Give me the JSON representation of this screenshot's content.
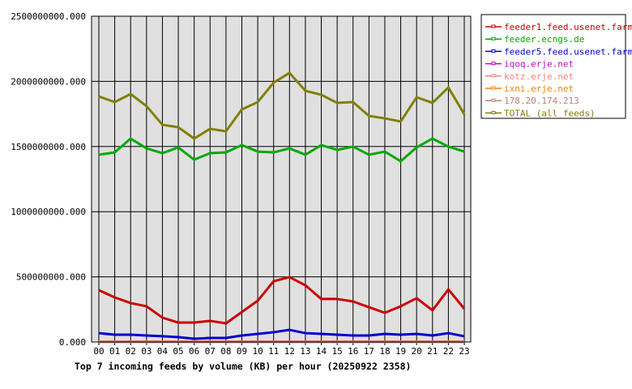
{
  "chart_data": {
    "type": "line",
    "title": "Top 7 incoming feeds by volume (KB) per hour (20250922 2358)",
    "xlabel": "",
    "ylabel": "",
    "ylim": [
      0,
      2500000000
    ],
    "yticks": [
      "0.000",
      "500000000.000",
      "1000000000.000",
      "1500000000.000",
      "2000000000.000",
      "2500000000.000"
    ],
    "ytick_values": [
      0,
      500000000,
      1000000000,
      1500000000,
      2000000000,
      2500000000
    ],
    "x": [
      "00",
      "01",
      "02",
      "03",
      "04",
      "05",
      "06",
      "07",
      "08",
      "09",
      "10",
      "11",
      "12",
      "13",
      "14",
      "15",
      "16",
      "17",
      "18",
      "19",
      "20",
      "21",
      "22",
      "23"
    ],
    "grid": true,
    "legend_position": "right",
    "plot_background": "#e0e0e0",
    "series": [
      {
        "name": "feeder1.feed.usenet.farm",
        "color": "#cc0000",
        "values": [
          398000000,
          342000000,
          299000000,
          274000000,
          187000000,
          149000000,
          149000000,
          162000000,
          143000000,
          230000000,
          317000000,
          466000000,
          498000000,
          435000000,
          330000000,
          330000000,
          311000000,
          267000000,
          224000000,
          274000000,
          336000000,
          243000000,
          404000000,
          255000000
        ]
      },
      {
        "name": "feeder.ecngs.de",
        "color": "#00aa00",
        "values": [
          1437000000,
          1455000000,
          1561000000,
          1486000000,
          1449000000,
          1493000000,
          1399000000,
          1449000000,
          1455000000,
          1511000000,
          1461000000,
          1455000000,
          1486000000,
          1437000000,
          1511000000,
          1474000000,
          1499000000,
          1437000000,
          1461000000,
          1387000000,
          1493000000,
          1561000000,
          1499000000,
          1461000000
        ]
      },
      {
        "name": "feeder5.feed.usenet.farm",
        "color": "#0000cc",
        "values": [
          68000000,
          56000000,
          56000000,
          50000000,
          44000000,
          37000000,
          25000000,
          31000000,
          31000000,
          50000000,
          62000000,
          75000000,
          93000000,
          68000000,
          62000000,
          56000000,
          50000000,
          50000000,
          62000000,
          56000000,
          62000000,
          50000000,
          68000000,
          44000000
        ]
      },
      {
        "name": "iqoq.erje.net",
        "color": "#cc00cc",
        "values": [
          3000000,
          3000000,
          3000000,
          3000000,
          3000000,
          3000000,
          3000000,
          3000000,
          3000000,
          3000000,
          3000000,
          3000000,
          3000000,
          3000000,
          3000000,
          3000000,
          3000000,
          3000000,
          3000000,
          3000000,
          3000000,
          3000000,
          3000000,
          3000000
        ]
      },
      {
        "name": "kotz.erje.net",
        "color": "#ff8080",
        "values": [
          2000000,
          2000000,
          2000000,
          2000000,
          2000000,
          2000000,
          2000000,
          2000000,
          2000000,
          2000000,
          2000000,
          2000000,
          2000000,
          2000000,
          2000000,
          2000000,
          2000000,
          2000000,
          2000000,
          2000000,
          2000000,
          2000000,
          2000000,
          2000000
        ]
      },
      {
        "name": "ixni.erje.net",
        "color": "#ff8000",
        "values": [
          2000000,
          2000000,
          2000000,
          2000000,
          2000000,
          2000000,
          2000000,
          2000000,
          2000000,
          2000000,
          2000000,
          2000000,
          2000000,
          2000000,
          2000000,
          2000000,
          2000000,
          2000000,
          2000000,
          2000000,
          2000000,
          2000000,
          2000000,
          2000000
        ]
      },
      {
        "name": "178.20.174.213",
        "color": "#c08080",
        "values": [
          1000000,
          1000000,
          1000000,
          1000000,
          1000000,
          1000000,
          1000000,
          1000000,
          1000000,
          1000000,
          1000000,
          1000000,
          1000000,
          1000000,
          1000000,
          1000000,
          1000000,
          1000000,
          1000000,
          1000000,
          1000000,
          1000000,
          1000000,
          1000000
        ]
      },
      {
        "name": "TOTAL (all feeds)",
        "color": "#808000",
        "values": [
          1884000000,
          1841000000,
          1903000000,
          1810000000,
          1667000000,
          1648000000,
          1561000000,
          1636000000,
          1617000000,
          1785000000,
          1841000000,
          1990000000,
          2065000000,
          1928000000,
          1897000000,
          1835000000,
          1841000000,
          1735000000,
          1716000000,
          1692000000,
          1878000000,
          1835000000,
          1953000000,
          1748000000
        ]
      }
    ]
  }
}
